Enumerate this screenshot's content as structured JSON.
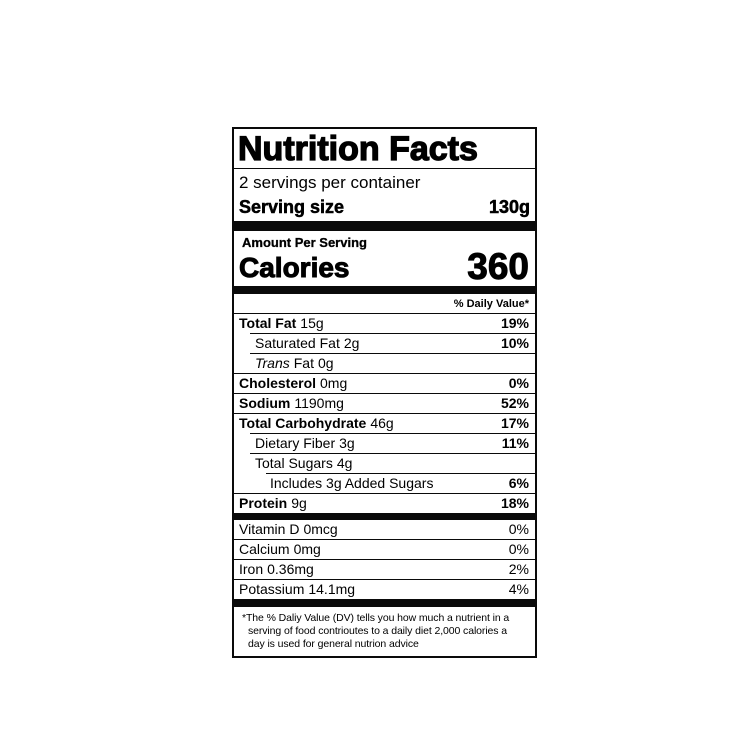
{
  "colors": {
    "ink": "#0a0a0a",
    "paper": "#ffffff"
  },
  "label": {
    "title": "Nutrition Facts",
    "servings_per_container": "2 servings per container",
    "serving_size_label": "Serving size",
    "serving_size_value": "130g",
    "amount_per_serving": "Amount Per Serving",
    "calories_label": "Calories",
    "calories_value": "360",
    "daily_value_header": "% Daily Value*",
    "nutrients": [
      {
        "name": "Total Fat",
        "amount": "15g",
        "dv": "19%"
      },
      {
        "name": "Saturated Fat",
        "amount": "2g",
        "dv": "10%"
      },
      {
        "name_italic": "Trans",
        "name": "Fat",
        "amount": "0g",
        "dv": ""
      },
      {
        "name": "Cholesterol",
        "amount": "0mg",
        "dv": "0%"
      },
      {
        "name": "Sodium",
        "amount": "1190mg",
        "dv": "52%"
      },
      {
        "name": "Total Carbohydrate",
        "amount": "46g",
        "dv": "17%"
      },
      {
        "name": "Dietary Fiber",
        "amount": "3g",
        "dv": "11%"
      },
      {
        "name": "Total Sugars",
        "amount": "4g",
        "dv": ""
      },
      {
        "name": "Includes 3g Added Sugars",
        "amount": "",
        "dv": "6%"
      },
      {
        "name": "Protein",
        "amount": "9g",
        "dv": "18%"
      }
    ],
    "micronutrients": [
      {
        "name": "Vitamin D",
        "amount": "0mcg",
        "dv": "0%"
      },
      {
        "name": "Calcium",
        "amount": "0mg",
        "dv": "0%"
      },
      {
        "name": "Iron",
        "amount": "0.36mg",
        "dv": "2%"
      },
      {
        "name": "Potassium",
        "amount": "14.1mg",
        "dv": "4%"
      }
    ],
    "footnote_lines": [
      "*The % Daliy Value (DV) tells you how much a nutrient in a",
      "serving of food contrioutes to a daily diet 2,000 calories a",
      "day is used for general nutrion advice"
    ]
  }
}
